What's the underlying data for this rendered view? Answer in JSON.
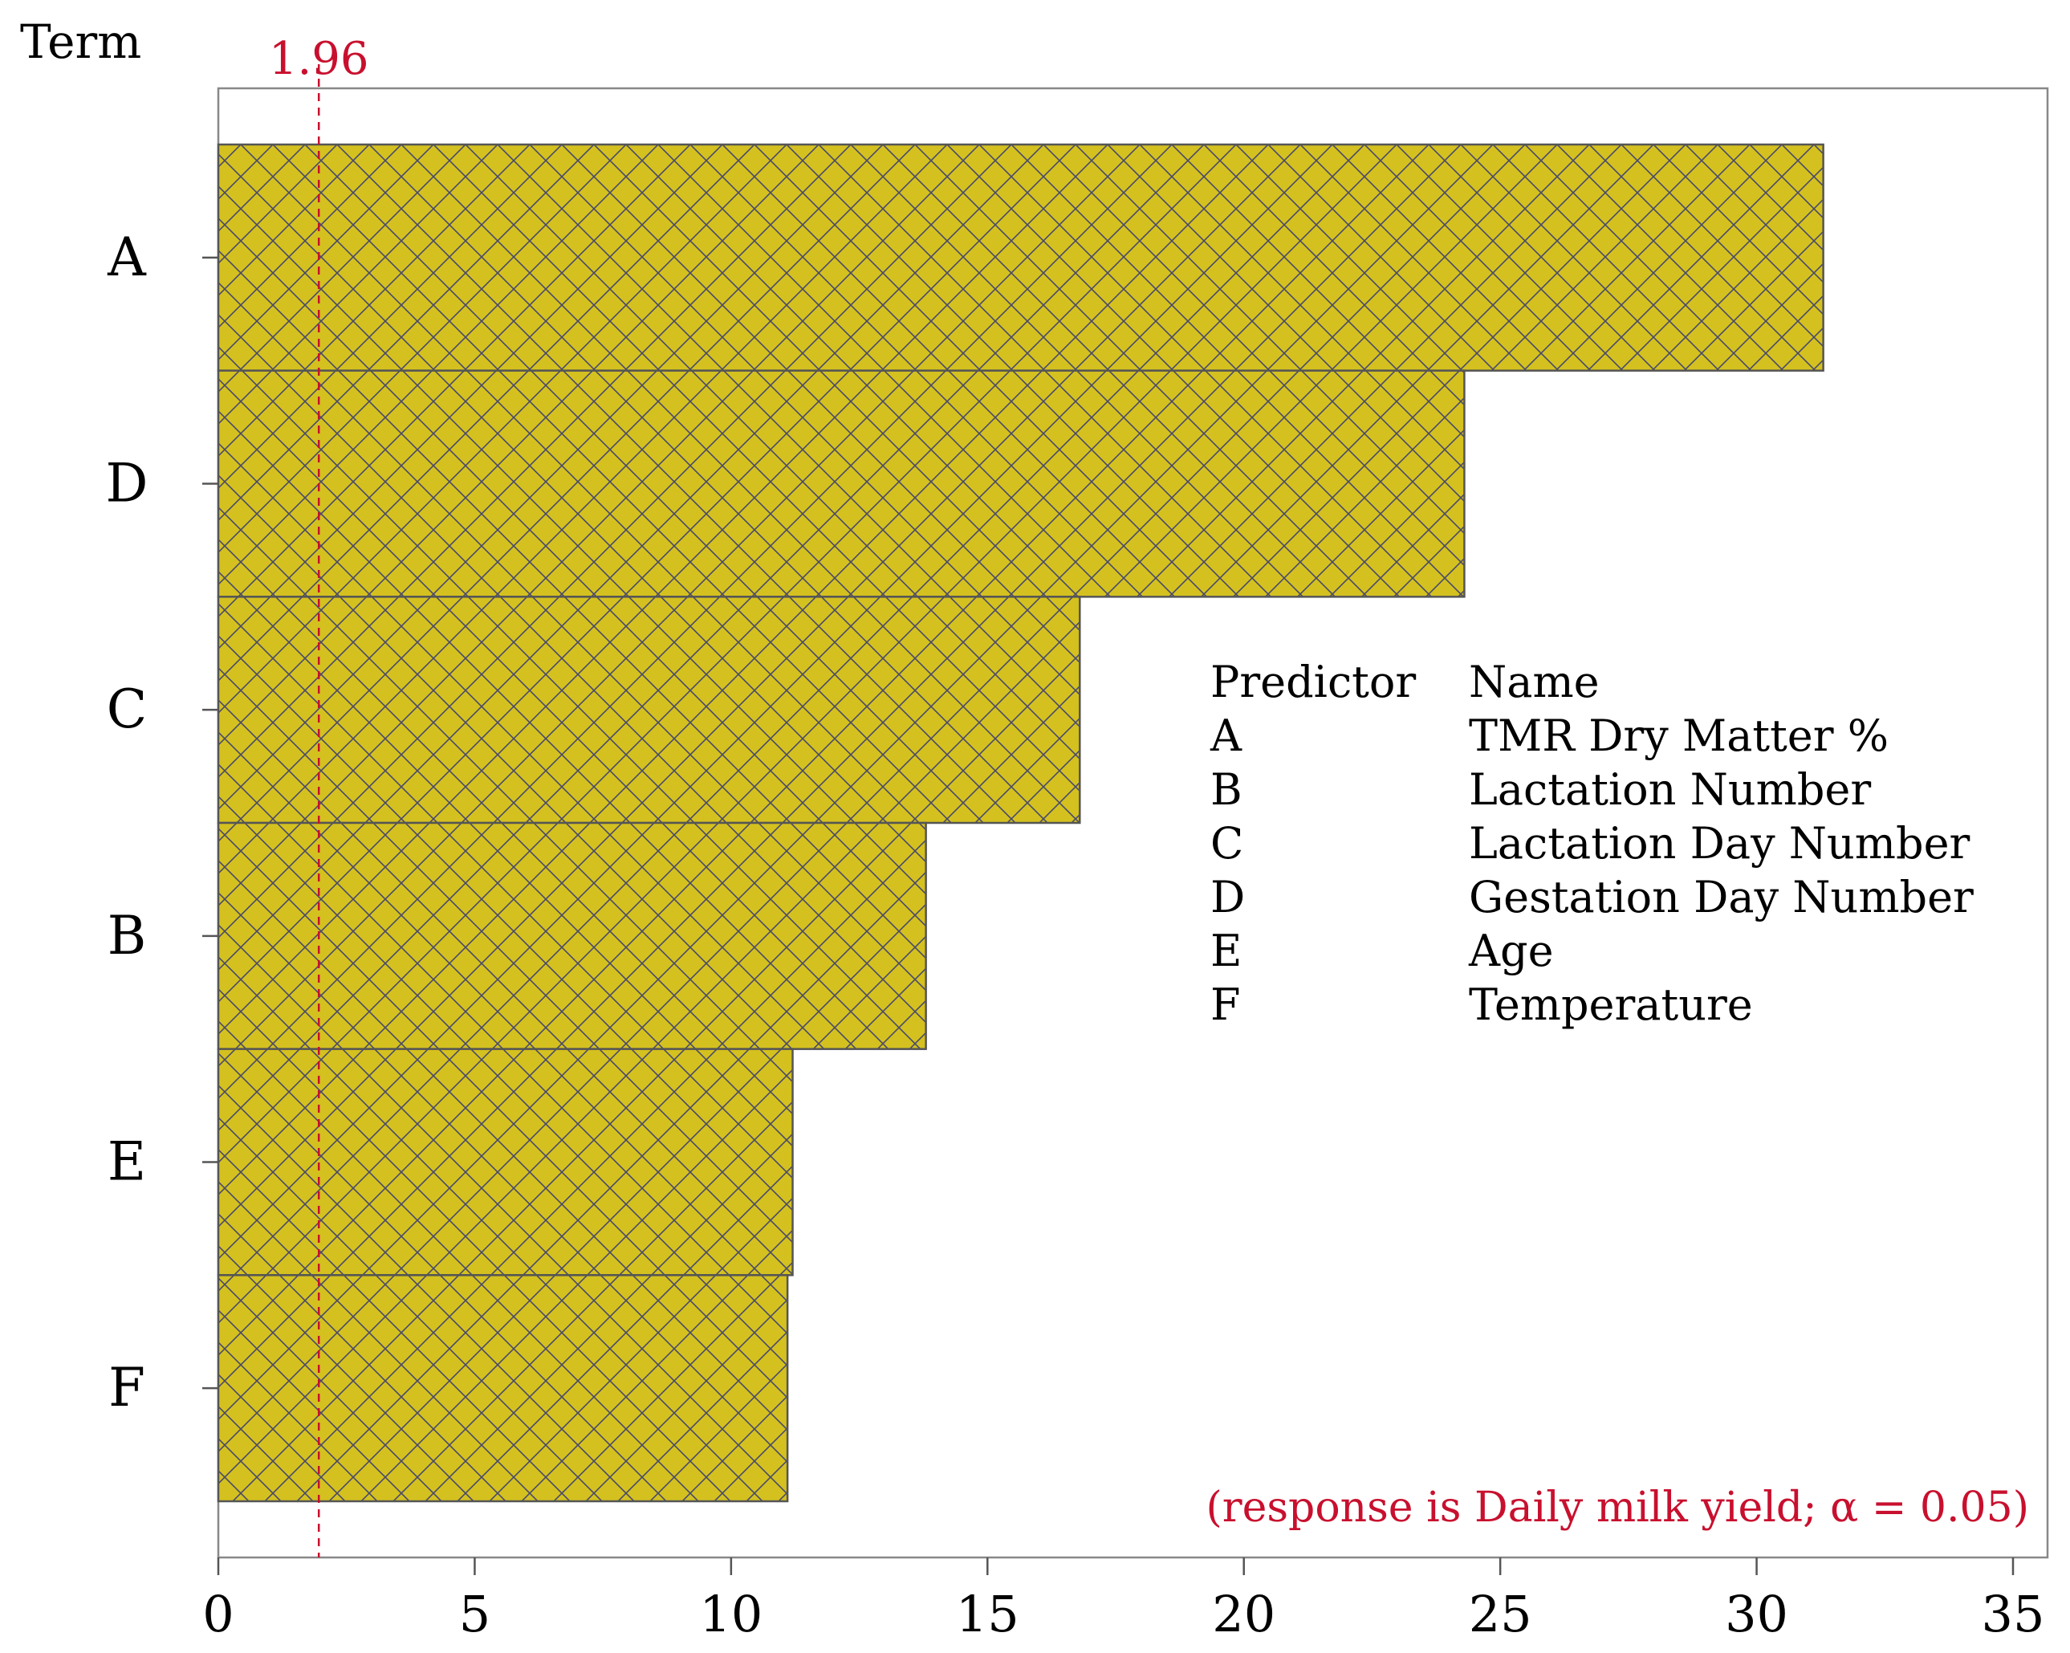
{
  "chart_data": {
    "type": "bar",
    "orientation": "horizontal",
    "y_axis_title": "Term",
    "categories": [
      "A",
      "D",
      "C",
      "B",
      "E",
      "F"
    ],
    "values": [
      31.3,
      24.3,
      16.8,
      13.8,
      11.2,
      11.1
    ],
    "xlim": [
      0,
      35
    ],
    "x_ticks": [
      "0",
      "5",
      "10",
      "15",
      "20",
      "25",
      "30",
      "35"
    ],
    "reference_line": {
      "value": 1.96,
      "label": "1.96",
      "style": "dashed"
    },
    "legend_table": {
      "headers": [
        "Predictor",
        "Name"
      ],
      "rows": [
        {
          "predictor": "A",
          "name": "TMR Dry Matter %"
        },
        {
          "predictor": "B",
          "name": "Lactation Number"
        },
        {
          "predictor": "C",
          "name": "Lactation Day Number"
        },
        {
          "predictor": "D",
          "name": "Gestation Day Number"
        },
        {
          "predictor": "E",
          "name": "Age"
        },
        {
          "predictor": "F",
          "name": "Temperature"
        }
      ]
    },
    "annotation": "(response is Daily milk yield; α = 0.05)",
    "grid": false,
    "colors": {
      "bar_fill": "#D4C11F",
      "bar_hatch": "#4A4A6A",
      "bar_edge": "#555555",
      "reference": "#C8102E",
      "axis": "#555555",
      "frame": "#888888",
      "text": "#000000"
    }
  }
}
